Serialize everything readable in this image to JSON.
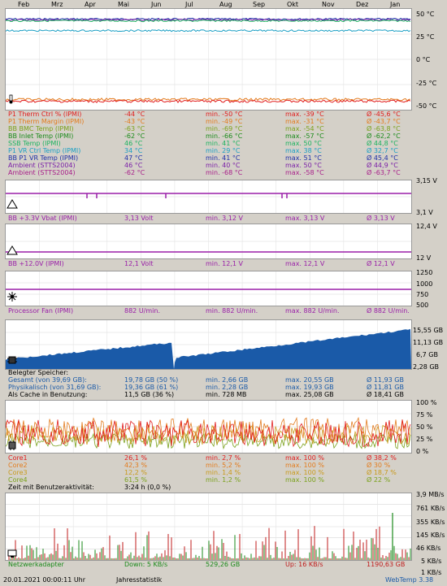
{
  "months": [
    "Feb",
    "Mrz",
    "Apr",
    "Mai",
    "Jun",
    "Jul",
    "Aug",
    "Sep",
    "Okt",
    "Nov",
    "Dez",
    "Jan"
  ],
  "temp_panel": {
    "axis": [
      "50 °C",
      "25 °C",
      "0 °C",
      "-25 °C",
      "-50 °C"
    ],
    "rows": [
      {
        "name": "P1 Therm Ctrl % (IPMI)",
        "cur": "-44 °C",
        "min": "min. -50 °C",
        "max": "max. -39 °C",
        "avg": "Ø -45,6 °C",
        "color": "#e11c1c"
      },
      {
        "name": "P1 Therm Margin (IPMI)",
        "cur": "-43 °C",
        "min": "min. -49 °C",
        "max": "max. -31 °C",
        "avg": "Ø -43,7 °C",
        "color": "#e37b1d"
      },
      {
        "name": "BB BMC Temp (IPMI)",
        "cur": "-63 °C",
        "min": "min. -69 °C",
        "max": "max. -54 °C",
        "avg": "Ø -63,8 °C",
        "color": "#7aa11c"
      },
      {
        "name": "BB Inlet Temp (IPMI)",
        "cur": "-62 °C",
        "min": "min. -66 °C",
        "max": "max. -57 °C",
        "avg": "Ø -62,2 °C",
        "color": "#1a8a1a"
      },
      {
        "name": "SSB Temp (IPMI)",
        "cur": "46 °C",
        "min": "min. 41 °C",
        "max": "max. 50 °C",
        "avg": "Ø 44,8 °C",
        "color": "#1cb35f"
      },
      {
        "name": "P1 VR Ctrl Temp (IPMI)",
        "cur": "34 °C",
        "min": "min. 29 °C",
        "max": "max. 38 °C",
        "avg": "Ø 32,7 °C",
        "color": "#1a9fc4"
      },
      {
        "name": "BB P1 VR Temp (IPMI)",
        "cur": "47 °C",
        "min": "min. 41 °C",
        "max": "max. 51 °C",
        "avg": "Ø 45,4 °C",
        "color": "#1f2fa8"
      },
      {
        "name": "Ambient (STTS2004)",
        "cur": "46 °C",
        "min": "min. 40 °C",
        "max": "max. 50 °C",
        "avg": "Ø 44,9 °C",
        "color": "#7a1fa8"
      },
      {
        "name": "Ambient (STTS2004)",
        "cur": "-62 °C",
        "min": "min. -68 °C",
        "max": "max. -58 °C",
        "avg": "Ø -63,7 °C",
        "color": "#a81f8a"
      }
    ]
  },
  "v33_panel": {
    "axis": [
      "3,15 V",
      "3,1 V"
    ],
    "row": {
      "name": "BB +3.3V Vbat (IPMI)",
      "cur": "3,13 Volt",
      "min": "min. 3,12 V",
      "max": "max. 3,13 V",
      "avg": "Ø 3,13 V",
      "color": "#9a1fa8"
    }
  },
  "v12_panel": {
    "axis": [
      "12,4 V",
      "12 V"
    ],
    "row": {
      "name": "BB +12.0V (IPMI)",
      "cur": "12,1 Volt",
      "min": "min. 12,1 V",
      "max": "max. 12,1 V",
      "avg": "Ø 12,1 V",
      "color": "#9a1fa8"
    }
  },
  "fan_panel": {
    "axis": [
      "1250",
      "1000",
      "750",
      "500"
    ],
    "row": {
      "name": "Processor Fan (IPMI)",
      "cur": "882 U/min.",
      "min": "min. 882 U/min.",
      "max": "max. 882 U/min.",
      "avg": "Ø 882 U/min.",
      "color": "#9a1fa8"
    }
  },
  "mem_panel": {
    "axis": [
      "15,55 GB",
      "11,13 GB",
      "6,7 GB",
      "2,28 GB"
    ],
    "title": "Belegter Speicher:",
    "rows": [
      {
        "name": "Gesamt (von 39,69 GB):",
        "cur": "19,78 GB (50 %)",
        "min": "min. 2,66 GB",
        "max": "max. 20,55 GB",
        "avg": "Ø 11,93 GB",
        "color": "#1a5aa8"
      },
      {
        "name": "Physikalisch (von 31,69 GB):",
        "cur": "19,36 GB (61 %)",
        "min": "min. 2,28 GB",
        "max": "max. 19,93 GB",
        "avg": "Ø 11,81 GB",
        "color": "#1a5aa8"
      },
      {
        "name": "Als Cache in Benutzung:",
        "cur": "11,5 GB (36 %)",
        "min": "min. 728 MB",
        "max": "max. 25,08 GB",
        "avg": "Ø 18,41 GB",
        "color": "#000000"
      }
    ]
  },
  "cpu_panel": {
    "axis": [
      "100 %",
      "75 %",
      "50 %",
      "25 %",
      "0 %"
    ],
    "rows": [
      {
        "name": "Core1",
        "cur": "26,1 %",
        "min": "min. 2,7 %",
        "max": "max. 100 %",
        "avg": "Ø 38,2 %",
        "color": "#e11c1c"
      },
      {
        "name": "Core2",
        "cur": "42,3 %",
        "min": "min. 5,2 %",
        "max": "max. 100 %",
        "avg": "Ø 30 %",
        "color": "#e37b1d"
      },
      {
        "name": "Core3",
        "cur": "12,2 %",
        "min": "min. 1,4 %",
        "max": "max. 100 %",
        "avg": "Ø 18,7 %",
        "color": "#c99a1c"
      },
      {
        "name": "Core4",
        "cur": "61,5 %",
        "min": "min. 1,2 %",
        "max": "max. 100 %",
        "avg": "Ø 22 %",
        "color": "#7aa11c"
      }
    ],
    "activity_label": "Zeit mit Benutzeraktivität:",
    "activity_value": "3:24 h (0,0 %)"
  },
  "net_panel": {
    "axis": [
      "3,9 MB/s",
      "761 KB/s",
      "355 KB/s",
      "145 KB/s",
      "46 KB/s",
      "5 KB/s",
      "1 KB/s"
    ],
    "name": "Netzwerkadapter",
    "down": "Down: 5 KB/s",
    "down_total": "529,26 GB",
    "up": "Up: 16 KB/s",
    "up_total": "1190,63 GB"
  },
  "footer": {
    "timestamp": "20.01.2021 00:00:11 Uhr",
    "label": "Jahresstatistik",
    "brand": "WebTemp 3.38"
  },
  "colors": {
    "purple": "#9a1fa8",
    "memblue": "#1a5aa8",
    "netred": "#c01c1c",
    "netgreen": "#1a8a1a"
  }
}
